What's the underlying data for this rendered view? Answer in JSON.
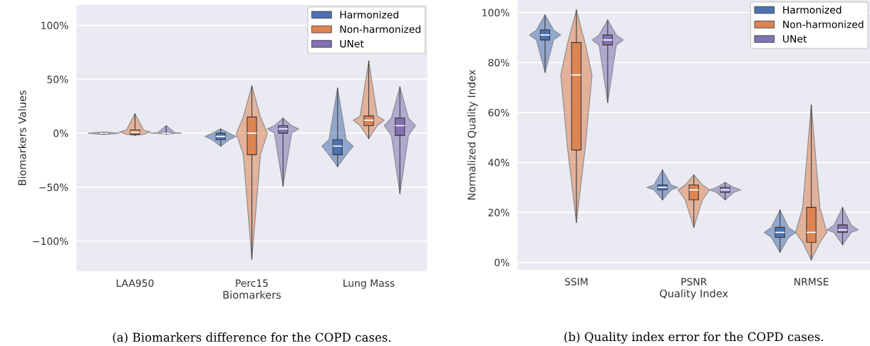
{
  "chart_data": [
    {
      "type": "box",
      "xlabel": "Biomarkers",
      "ylabel": "Biomarkers Values",
      "categories": [
        "LAA950",
        "Perc15",
        "Lung Mass"
      ],
      "ylim": [
        -128,
        119
      ],
      "yticks": [
        {
          "value": -100,
          "label": "−100%"
        },
        {
          "value": -50,
          "label": "−50%"
        },
        {
          "value": 0,
          "label": "0%"
        },
        {
          "value": 50,
          "label": "50%"
        },
        {
          "value": 100,
          "label": "100%"
        }
      ],
      "grid": "y",
      "legend": "top right",
      "annotations": [
        "(a) Biomarkers difference for the COPD cases."
      ],
      "series": [
        {
          "name": "Harmonized",
          "color": "#4c72b0",
          "boxes": [
            {
              "low": -1,
              "q1": -0.5,
              "median": 0,
              "q3": 0.5,
              "high": 1
            },
            {
              "low": -12,
              "q1": -6,
              "median": -3,
              "q3": 0,
              "high": 4
            },
            {
              "low": -31,
              "q1": -20,
              "median": -12,
              "q3": -6,
              "high": 42
            }
          ]
        },
        {
          "name": "Non-harmonized",
          "color": "#dd8452",
          "boxes": [
            {
              "low": -2,
              "q1": -1,
              "median": 1,
              "q3": 3,
              "high": 18
            },
            {
              "low": -117,
              "q1": -20,
              "median": 0,
              "q3": 15,
              "high": 44
            },
            {
              "low": -5,
              "q1": 7,
              "median": 12,
              "q3": 16,
              "high": 67
            }
          ]
        },
        {
          "name": "UNet",
          "color": "#8172b3",
          "boxes": [
            {
              "low": -1,
              "q1": 0,
              "median": 0,
              "q3": 0.5,
              "high": 7
            },
            {
              "low": -49,
              "q1": 0,
              "median": 4,
              "q3": 7,
              "high": 14
            },
            {
              "low": -56,
              "q1": -2,
              "median": 7,
              "q3": 14,
              "high": 43
            }
          ]
        }
      ]
    },
    {
      "type": "box",
      "xlabel": "Quality Index",
      "ylabel": "Normalized Quality Index",
      "categories": [
        "SSIM",
        "PSNR",
        "NRMSE"
      ],
      "ylim": [
        -3,
        105
      ],
      "yticks": [
        {
          "value": 0,
          "label": "0%"
        },
        {
          "value": 20,
          "label": "20%"
        },
        {
          "value": 40,
          "label": "40%"
        },
        {
          "value": 60,
          "label": "60%"
        },
        {
          "value": 80,
          "label": "80%"
        },
        {
          "value": 100,
          "label": "100%"
        }
      ],
      "grid": "y",
      "legend": "top right",
      "annotations": [
        "(b) Quality index error for the COPD cases."
      ],
      "series": [
        {
          "name": "Harmonized",
          "color": "#4c72b0",
          "boxes": [
            {
              "low": 76,
              "q1": 89,
              "median": 91,
              "q3": 93,
              "high": 99
            },
            {
              "low": 25,
              "q1": 29,
              "median": 30,
              "q3": 31,
              "high": 37
            },
            {
              "low": 4,
              "q1": 10,
              "median": 12,
              "q3": 14,
              "high": 21
            }
          ]
        },
        {
          "name": "Non-harmonized",
          "color": "#dd8452",
          "boxes": [
            {
              "low": 16,
              "q1": 45,
              "median": 75,
              "q3": 88,
              "high": 101
            },
            {
              "low": 14,
              "q1": 25,
              "median": 29,
              "q3": 31,
              "high": 35
            },
            {
              "low": 1,
              "q1": 8,
              "median": 12,
              "q3": 22,
              "high": 63
            }
          ]
        },
        {
          "name": "UNet",
          "color": "#8172b3",
          "boxes": [
            {
              "low": 64,
              "q1": 87,
              "median": 89,
              "q3": 91,
              "high": 97
            },
            {
              "low": 25,
              "q1": 28,
              "median": 29,
              "q3": 30,
              "high": 32
            },
            {
              "low": 7,
              "q1": 12,
              "median": 13,
              "q3": 15,
              "high": 22
            }
          ]
        }
      ]
    }
  ]
}
